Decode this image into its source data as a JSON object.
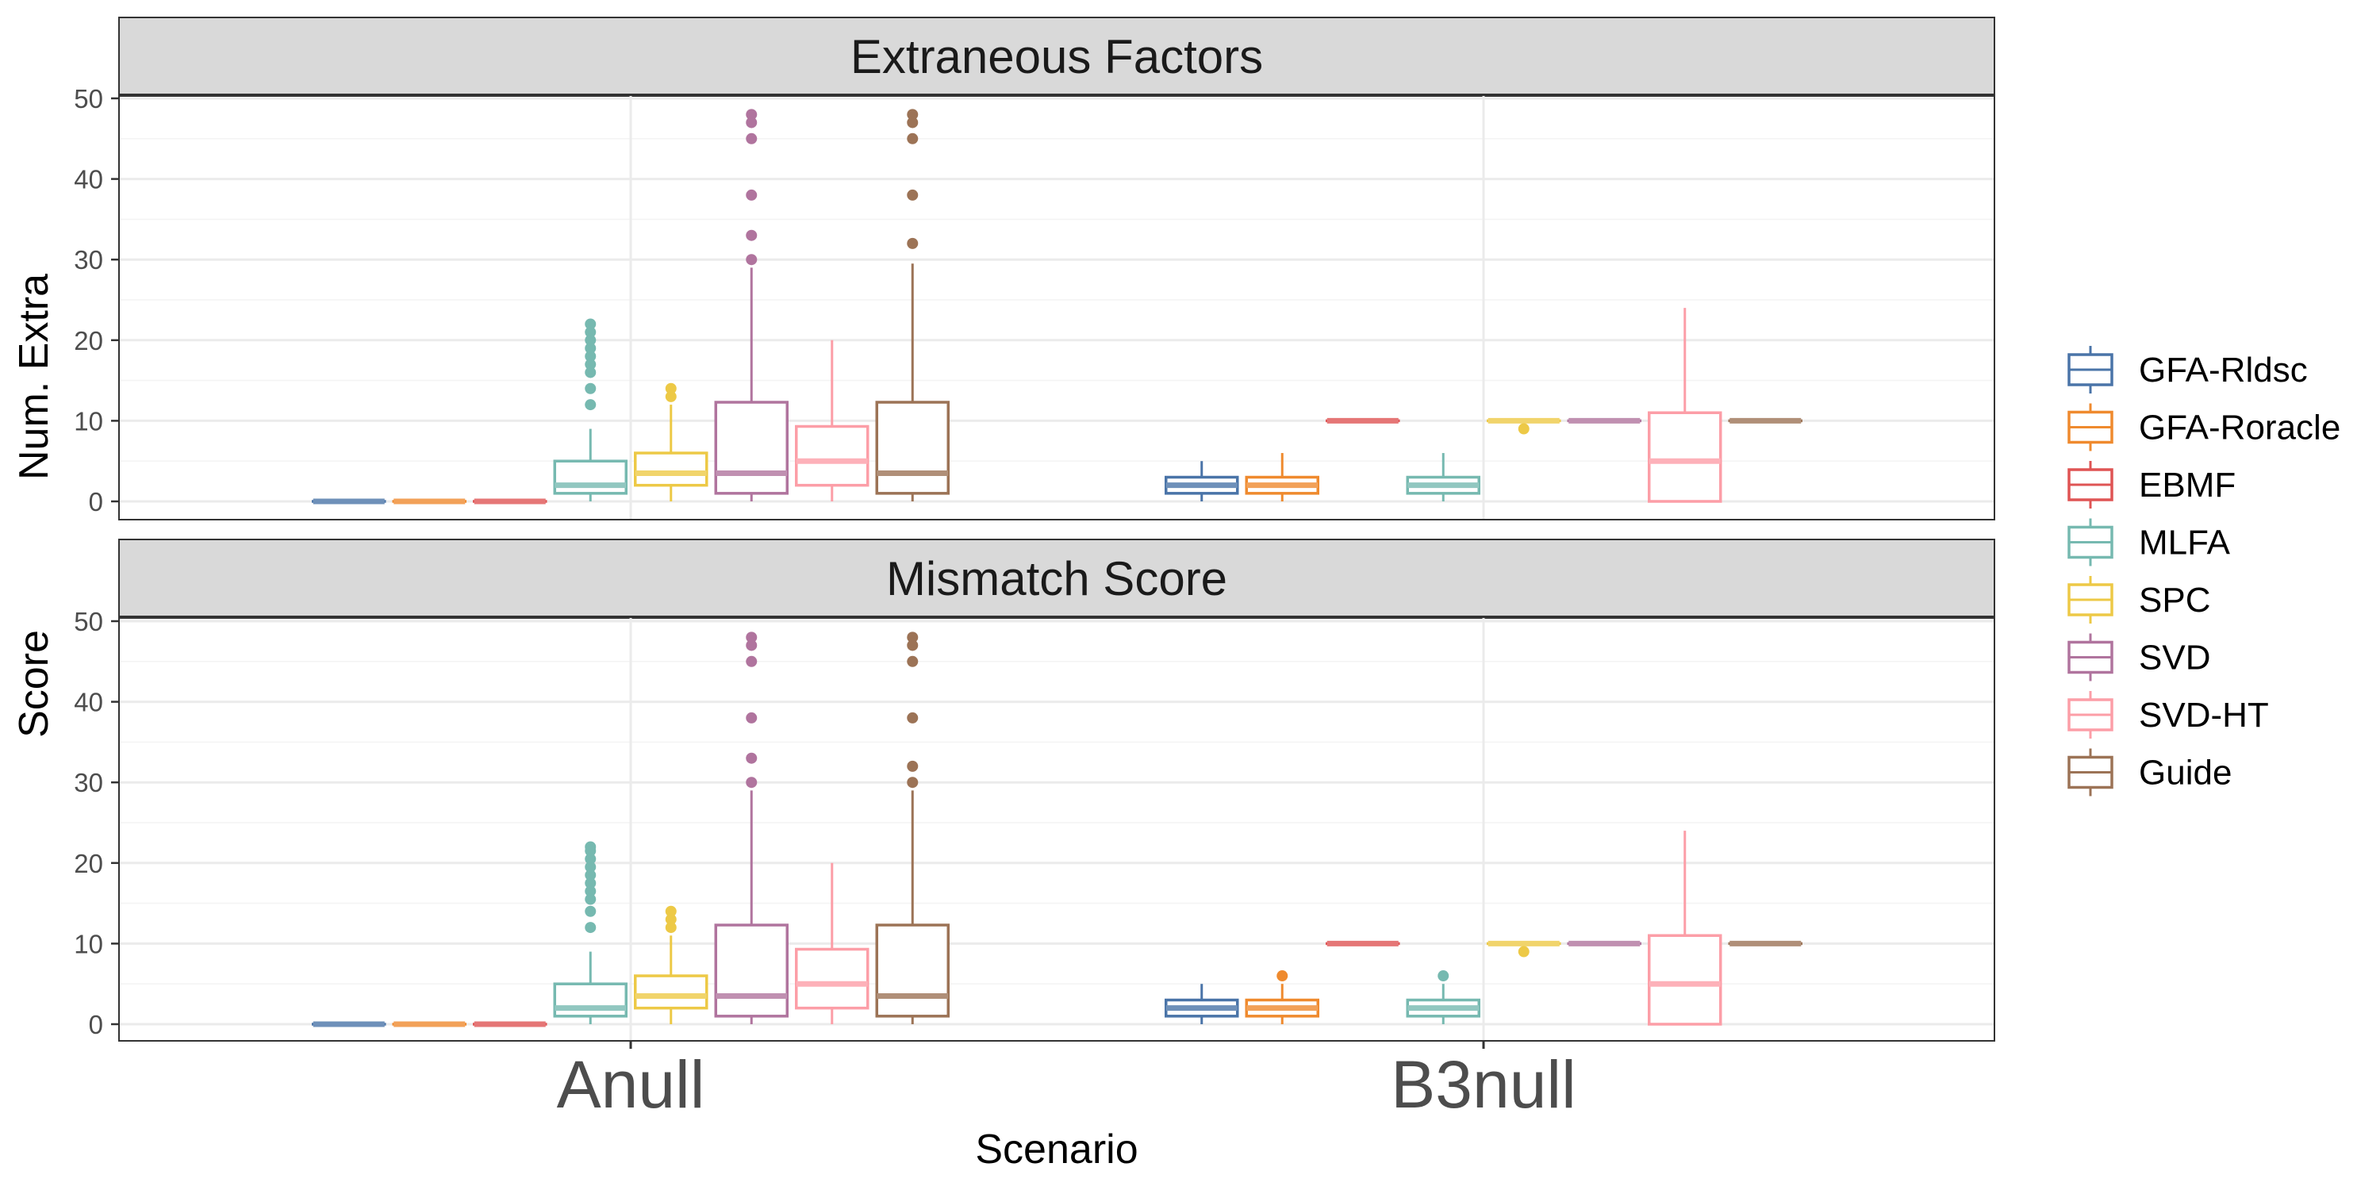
{
  "chart_data": {
    "type": "boxplot",
    "xlabel": "Scenario",
    "scenarios": [
      "Anull",
      "B3null"
    ],
    "methods": [
      "GFA-Rldsc",
      "GFA-Roracle",
      "EBMF",
      "MLFA",
      "SPC",
      "SVD",
      "SVD-HT",
      "Guide"
    ],
    "colors": [
      "#4a74a8",
      "#ef8a2e",
      "#df5454",
      "#76b9b0",
      "#edc946",
      "#b0749e",
      "#fc9ea7",
      "#9c7356"
    ],
    "yticks": [
      0,
      10,
      20,
      30,
      40,
      50
    ],
    "ylim": [
      -2,
      52
    ],
    "panels": [
      {
        "title": "Extraneous Factors",
        "ylabel": "Num. Extra",
        "boxes": {
          "Anull": [
            {
              "min": 0,
              "q1": 0,
              "median": 0,
              "q3": 0,
              "max": 0,
              "outliers": []
            },
            {
              "min": 0,
              "q1": 0,
              "median": 0,
              "q3": 0,
              "max": 0,
              "outliers": []
            },
            {
              "min": 0,
              "q1": 0,
              "median": 0,
              "q3": 0,
              "max": 0,
              "outliers": []
            },
            {
              "min": 0,
              "q1": 1,
              "median": 2,
              "q3": 5,
              "max": 9,
              "outliers": [
                12,
                14,
                16,
                17,
                18,
                19,
                20,
                21,
                22
              ]
            },
            {
              "min": 0,
              "q1": 2,
              "median": 3.5,
              "q3": 6,
              "max": 12,
              "outliers": [
                13,
                14
              ]
            },
            {
              "min": 0,
              "q1": 1,
              "median": 3.5,
              "q3": 12.3,
              "max": 29,
              "outliers": [
                30,
                33,
                38,
                45,
                47,
                48
              ]
            },
            {
              "min": 0,
              "q1": 2,
              "median": 5,
              "q3": 9.3,
              "max": 20,
              "outliers": []
            },
            {
              "min": 0,
              "q1": 1,
              "median": 3.5,
              "q3": 12.3,
              "max": 29.5,
              "outliers": [
                32,
                38,
                45,
                47,
                48
              ]
            }
          ],
          "B3null": [
            {
              "min": 0,
              "q1": 1,
              "median": 2,
              "q3": 3,
              "max": 5,
              "outliers": []
            },
            {
              "min": 0,
              "q1": 1,
              "median": 2,
              "q3": 3,
              "max": 6,
              "outliers": []
            },
            {
              "min": 10,
              "q1": 10,
              "median": 10,
              "q3": 10,
              "max": 10,
              "outliers": []
            },
            {
              "min": 0,
              "q1": 1,
              "median": 2,
              "q3": 3,
              "max": 6,
              "outliers": []
            },
            {
              "min": 10,
              "q1": 10,
              "median": 10,
              "q3": 10,
              "max": 10,
              "outliers": [
                9
              ]
            },
            {
              "min": 10,
              "q1": 10,
              "median": 10,
              "q3": 10,
              "max": 10,
              "outliers": []
            },
            {
              "min": 0,
              "q1": 0,
              "median": 5,
              "q3": 11,
              "max": 24,
              "outliers": []
            },
            {
              "min": 10,
              "q1": 10,
              "median": 10,
              "q3": 10,
              "max": 10,
              "outliers": []
            }
          ]
        }
      },
      {
        "title": "Mismatch Score",
        "ylabel": "Score",
        "boxes": {
          "Anull": [
            {
              "min": 0,
              "q1": 0,
              "median": 0,
              "q3": 0,
              "max": 0,
              "outliers": []
            },
            {
              "min": 0,
              "q1": 0,
              "median": 0,
              "q3": 0,
              "max": 0,
              "outliers": []
            },
            {
              "min": 0,
              "q1": 0,
              "median": 0,
              "q3": 0,
              "max": 0,
              "outliers": []
            },
            {
              "min": 0,
              "q1": 1,
              "median": 2,
              "q3": 5,
              "max": 9,
              "outliers": [
                12,
                14,
                15.5,
                16.5,
                17.5,
                18.5,
                19.5,
                20.5,
                21.5,
                22
              ]
            },
            {
              "min": 0,
              "q1": 2,
              "median": 3.5,
              "q3": 6,
              "max": 11,
              "outliers": [
                12,
                13,
                14
              ]
            },
            {
              "min": 0,
              "q1": 1,
              "median": 3.5,
              "q3": 12.3,
              "max": 29,
              "outliers": [
                30,
                33,
                38,
                45,
                47,
                48
              ]
            },
            {
              "min": 0,
              "q1": 2,
              "median": 5,
              "q3": 9.3,
              "max": 20,
              "outliers": []
            },
            {
              "min": 0,
              "q1": 1,
              "median": 3.5,
              "q3": 12.3,
              "max": 29,
              "outliers": [
                30,
                32,
                38,
                45,
                47,
                48
              ]
            }
          ],
          "B3null": [
            {
              "min": 0,
              "q1": 1,
              "median": 2,
              "q3": 3,
              "max": 5,
              "outliers": []
            },
            {
              "min": 0,
              "q1": 1,
              "median": 2,
              "q3": 3,
              "max": 5,
              "outliers": [
                6
              ]
            },
            {
              "min": 10,
              "q1": 10,
              "median": 10,
              "q3": 10,
              "max": 10,
              "outliers": []
            },
            {
              "min": 0,
              "q1": 1,
              "median": 2,
              "q3": 3,
              "max": 5,
              "outliers": [
                6
              ]
            },
            {
              "min": 10,
              "q1": 10,
              "median": 10,
              "q3": 10,
              "max": 10,
              "outliers": [
                9
              ]
            },
            {
              "min": 10,
              "q1": 10,
              "median": 10,
              "q3": 10,
              "max": 10,
              "outliers": []
            },
            {
              "min": 0,
              "q1": 0,
              "median": 5,
              "q3": 11,
              "max": 24,
              "outliers": []
            },
            {
              "min": 10,
              "q1": 10,
              "median": 10,
              "q3": 10,
              "max": 10,
              "outliers": []
            }
          ]
        }
      }
    ]
  }
}
